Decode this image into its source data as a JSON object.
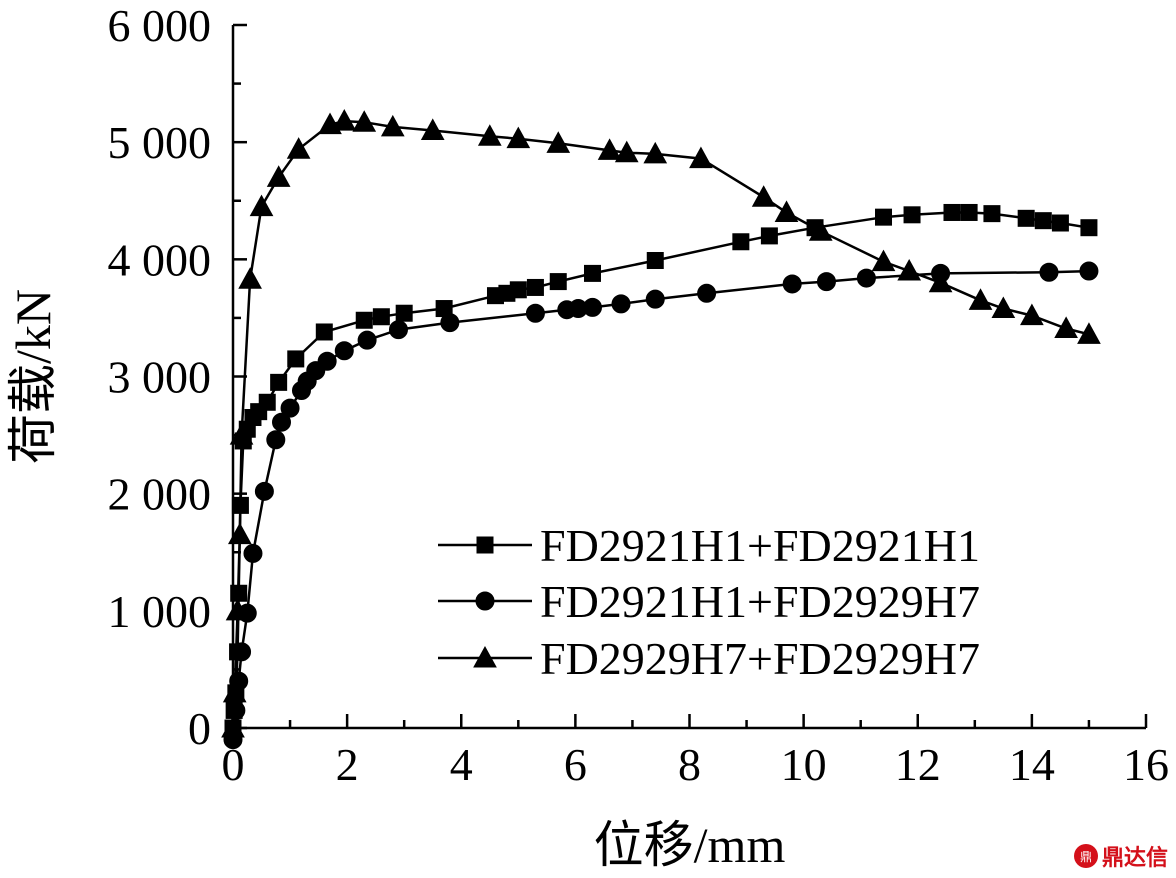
{
  "chart_data": {
    "type": "line",
    "title": "",
    "xlabel": "位移/mm",
    "ylabel": "荷载/kN",
    "xlim": [
      0,
      16
    ],
    "ylim": [
      0,
      6000
    ],
    "xticks": [
      0,
      2,
      4,
      6,
      8,
      10,
      12,
      14,
      16
    ],
    "yticks": [
      0,
      1000,
      2000,
      3000,
      4000,
      5000,
      6000
    ],
    "xtick_labels": [
      "0",
      "2",
      "4",
      "6",
      "8",
      "10",
      "12",
      "14",
      "16"
    ],
    "ytick_labels": [
      "0",
      "1 000",
      "2 000",
      "3 000",
      "4 000",
      "5 000",
      "6 000"
    ],
    "grid": false,
    "legend_position": "bottom-right",
    "series": [
      {
        "name": "FD2921H1+FD2921H1",
        "marker": "square",
        "points": [
          [
            0,
            0
          ],
          [
            0.02,
            150
          ],
          [
            0.05,
            300
          ],
          [
            0.08,
            650
          ],
          [
            0.1,
            1150
          ],
          [
            0.13,
            1900
          ],
          [
            0.18,
            2450
          ],
          [
            0.25,
            2550
          ],
          [
            0.35,
            2650
          ],
          [
            0.45,
            2700
          ],
          [
            0.6,
            2780
          ],
          [
            0.8,
            2950
          ],
          [
            1.1,
            3150
          ],
          [
            1.6,
            3380
          ],
          [
            2.3,
            3480
          ],
          [
            2.6,
            3510
          ],
          [
            3.0,
            3540
          ],
          [
            3.7,
            3580
          ],
          [
            4.6,
            3690
          ],
          [
            4.8,
            3710
          ],
          [
            5.0,
            3740
          ],
          [
            5.3,
            3760
          ],
          [
            5.7,
            3810
          ],
          [
            6.3,
            3880
          ],
          [
            7.4,
            3990
          ],
          [
            8.9,
            4150
          ],
          [
            9.4,
            4200
          ],
          [
            10.2,
            4270
          ],
          [
            11.4,
            4360
          ],
          [
            11.9,
            4380
          ],
          [
            12.6,
            4400
          ],
          [
            12.9,
            4400
          ],
          [
            13.3,
            4390
          ],
          [
            13.9,
            4350
          ],
          [
            14.2,
            4330
          ],
          [
            14.5,
            4310
          ],
          [
            15.0,
            4270
          ]
        ]
      },
      {
        "name": "FD2921H1+FD2929H7",
        "marker": "circle",
        "points": [
          [
            0,
            -100
          ],
          [
            0.05,
            150
          ],
          [
            0.1,
            400
          ],
          [
            0.15,
            650
          ],
          [
            0.25,
            980
          ],
          [
            0.35,
            1490
          ],
          [
            0.55,
            2020
          ],
          [
            0.75,
            2460
          ],
          [
            0.85,
            2610
          ],
          [
            1.0,
            2730
          ],
          [
            1.2,
            2880
          ],
          [
            1.3,
            2960
          ],
          [
            1.45,
            3050
          ],
          [
            1.65,
            3130
          ],
          [
            1.95,
            3220
          ],
          [
            2.35,
            3310
          ],
          [
            2.9,
            3400
          ],
          [
            3.8,
            3460
          ],
          [
            5.3,
            3540
          ],
          [
            5.85,
            3570
          ],
          [
            6.05,
            3580
          ],
          [
            6.3,
            3590
          ],
          [
            6.8,
            3620
          ],
          [
            7.4,
            3660
          ],
          [
            8.3,
            3710
          ],
          [
            9.8,
            3790
          ],
          [
            10.4,
            3810
          ],
          [
            11.1,
            3840
          ],
          [
            12.4,
            3880
          ],
          [
            14.3,
            3890
          ],
          [
            15.0,
            3900
          ]
        ]
      },
      {
        "name": "FD2929H7+FD2929H7",
        "marker": "triangle",
        "points": [
          [
            0,
            0
          ],
          [
            0.03,
            300
          ],
          [
            0.08,
            1000
          ],
          [
            0.12,
            1650
          ],
          [
            0.15,
            2500
          ],
          [
            0.3,
            3830
          ],
          [
            0.5,
            4450
          ],
          [
            0.8,
            4700
          ],
          [
            1.15,
            4940
          ],
          [
            1.7,
            5150
          ],
          [
            1.95,
            5180
          ],
          [
            2.3,
            5170
          ],
          [
            2.8,
            5130
          ],
          [
            3.5,
            5100
          ],
          [
            4.5,
            5050
          ],
          [
            5.0,
            5030
          ],
          [
            5.7,
            4990
          ],
          [
            6.6,
            4930
          ],
          [
            6.9,
            4910
          ],
          [
            7.4,
            4900
          ],
          [
            8.2,
            4860
          ],
          [
            9.3,
            4530
          ],
          [
            9.7,
            4400
          ],
          [
            10.3,
            4240
          ],
          [
            11.4,
            3980
          ],
          [
            11.85,
            3900
          ],
          [
            12.4,
            3800
          ],
          [
            13.1,
            3650
          ],
          [
            13.5,
            3580
          ],
          [
            14.0,
            3520
          ],
          [
            14.6,
            3410
          ],
          [
            15.0,
            3360
          ]
        ]
      }
    ]
  },
  "watermark": {
    "text": "鼎达信",
    "logo": "鼎"
  }
}
